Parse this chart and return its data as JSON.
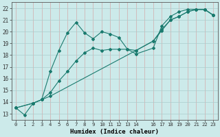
{
  "xlabel": "Humidex (Indice chaleur)",
  "bg_color": "#cceaea",
  "grid_color_v": "#d4aaaa",
  "grid_color_h": "#aacccc",
  "line_color": "#1a7a6e",
  "xlim": [
    -0.5,
    23.5
  ],
  "ylim": [
    12.5,
    22.5
  ],
  "xtick_pos": [
    0,
    1,
    2,
    3,
    4,
    5,
    6,
    7,
    8,
    9,
    10,
    11,
    12,
    13,
    14,
    16,
    17,
    18,
    19,
    20,
    21,
    22,
    23
  ],
  "xtick_labels": [
    "0",
    "1",
    "2",
    "3",
    "4",
    "5",
    "6",
    "7",
    "8",
    "9",
    "10",
    "11",
    "12",
    "13",
    "14",
    "16",
    "17",
    "18",
    "19",
    "20",
    "21",
    "22",
    "23"
  ],
  "yticks": [
    13,
    14,
    15,
    16,
    17,
    18,
    19,
    20,
    21,
    22
  ],
  "line1_x": [
    0,
    1,
    2,
    3,
    4,
    5,
    6,
    7,
    8,
    9,
    10,
    11,
    12,
    13,
    14,
    16,
    17,
    18,
    19,
    20,
    21,
    22,
    23
  ],
  "line1_y": [
    13.5,
    12.9,
    13.9,
    14.2,
    16.6,
    18.4,
    19.9,
    20.8,
    19.9,
    19.4,
    20.0,
    19.8,
    19.5,
    18.5,
    18.1,
    18.6,
    20.5,
    21.3,
    21.7,
    21.9,
    21.9,
    21.9,
    21.4
  ],
  "line2_x": [
    0,
    2,
    3,
    4,
    5,
    6,
    7,
    8,
    9,
    10,
    11,
    12,
    13,
    14,
    16,
    17,
    18,
    19,
    20,
    21,
    22,
    23
  ],
  "line2_y": [
    13.5,
    13.9,
    14.2,
    14.8,
    15.8,
    16.6,
    17.5,
    18.2,
    18.6,
    18.4,
    18.5,
    18.5,
    18.5,
    18.4,
    19.2,
    20.1,
    21.0,
    21.3,
    21.7,
    21.9,
    21.9,
    21.4
  ],
  "line3_x": [
    0,
    2,
    3,
    4,
    14,
    16,
    17,
    18,
    19,
    20,
    21,
    22,
    23
  ],
  "line3_y": [
    13.5,
    13.9,
    14.2,
    14.5,
    18.4,
    19.2,
    20.2,
    21.0,
    21.3,
    21.7,
    21.9,
    21.9,
    21.4
  ]
}
